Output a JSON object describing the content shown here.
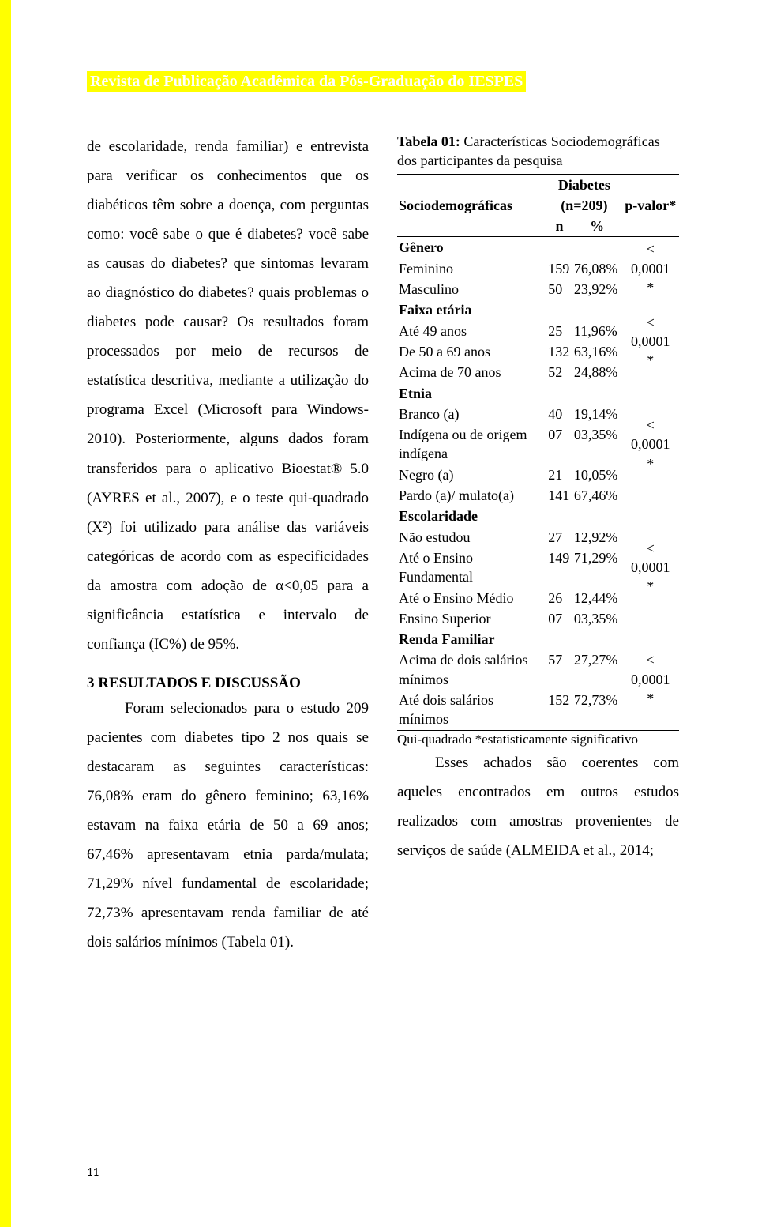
{
  "banner": "Revista de Publicação Acadêmica da Pós-Graduação do IESPES",
  "page_number": "11",
  "colors": {
    "yellow": "#ffff00",
    "text": "#000000",
    "background": "#ffffff",
    "banner_text": "#ffffff"
  },
  "typography": {
    "body_family": "Times New Roman",
    "body_size_pt": 12,
    "banner_size_pt": 13,
    "line_height": 1.95
  },
  "left_column": {
    "para1": "de escolaridade, renda familiar) e entrevista para verificar os conhecimentos que os diabéticos têm sobre a doença, com perguntas como: você sabe o que é diabetes? você sabe as causas do diabetes?   que sintomas levaram ao diagnóstico do diabetes?   quais problemas o diabetes pode causar?   Os resultados foram processados por meio de recursos de estatística descritiva, mediante a utilização do programa Excel (Microsoft para Windows-2010). Posteriormente, alguns dados foram transferidos para o aplicativo Bioestat® 5.0 (AYRES et al., 2007), e o teste qui-quadrado (X²) foi utilizado para análise das variáveis categóricas de acordo com as especificidades da amostra com adoção de α<0,05 para a significância estatística e intervalo de confiança (IC%) de 95%.",
    "section_title": "3 RESULTADOS E DISCUSSÃO",
    "para2": "Foram selecionados para o estudo 209 pacientes com diabetes tipo 2 nos quais se destacaram as seguintes características: 76,08% eram do gênero feminino; 63,16% estavam na faixa etária de 50 a 69 anos; 67,46% apresentavam etnia parda/mulata; 71,29% nível fundamental de escolaridade; 72,73% apresentavam renda familiar de até dois salários mínimos (Tabela 01)."
  },
  "table": {
    "type": "table",
    "caption_bold": "Tabela 01:",
    "caption_rest": " Características Sociodemográficas dos participantes da pesquisa",
    "header": {
      "col1": "Sociodemográficas",
      "diabetes_label": "Diabetes",
      "n_label": "(n=209)",
      "sub_n": "n",
      "sub_pct": "%",
      "pvalor": "p-valor*"
    },
    "groups": [
      {
        "label": "Gênero",
        "bold": true,
        "pvalue": "< 0,0001*",
        "rows": [
          {
            "label": "Feminino",
            "n": "159",
            "pct": "76,08%"
          },
          {
            "label": "Masculino",
            "n": "50",
            "pct": "23,92%"
          }
        ]
      },
      {
        "label": "Faixa etária",
        "bold": true,
        "pvalue": "< 0,0001*",
        "rows": [
          {
            "label": "Até 49 anos",
            "n": "25",
            "pct": "11,96%"
          },
          {
            "label": "De 50 a 69 anos",
            "n": "132",
            "pct": "63,16%"
          },
          {
            "label": "Acima de 70 anos",
            "n": "52",
            "pct": "24,88%"
          }
        ]
      },
      {
        "label": "Etnia",
        "bold": true,
        "pvalue": "< 0,0001*",
        "rows": [
          {
            "label": "Branco (a)",
            "n": "40",
            "pct": "19,14%"
          },
          {
            "label": "Indígena ou de origem indígena",
            "n": "07",
            "pct": "03,35%"
          },
          {
            "label": "Negro (a)",
            "n": "21",
            "pct": "10,05%"
          },
          {
            "label": "Pardo (a)/ mulato(a)",
            "n": "141",
            "pct": "67,46%"
          }
        ]
      },
      {
        "label": "Escolaridade",
        "bold": true,
        "pvalue": "< 0,0001*",
        "rows": [
          {
            "label": "Não estudou",
            "n": "27",
            "pct": "12,92%"
          },
          {
            "label": "Até o Ensino Fundamental",
            "n": "149",
            "pct": "71,29%"
          },
          {
            "label": "Até o Ensino Médio",
            "n": "26",
            "pct": "12,44%"
          },
          {
            "label": "Ensino Superior",
            "n": "07",
            "pct": "03,35%"
          }
        ]
      },
      {
        "label": "Renda Familiar",
        "bold": true,
        "pvalue": "< 0,0001*",
        "rows": [
          {
            "label": "Acima de dois salários mínimos",
            "n": "57",
            "pct": "27,27%"
          },
          {
            "label": "Até dois salários mínimos",
            "n": "152",
            "pct": "72,73%"
          }
        ]
      }
    ],
    "footnote": "Qui-quadrado *estatisticamente significativo"
  },
  "right_column": {
    "after_table": "Esses achados são coerentes com aqueles encontrados em outros estudos realizados com amostras provenientes de serviços de saúde (ALMEIDA et al., 2014;"
  }
}
